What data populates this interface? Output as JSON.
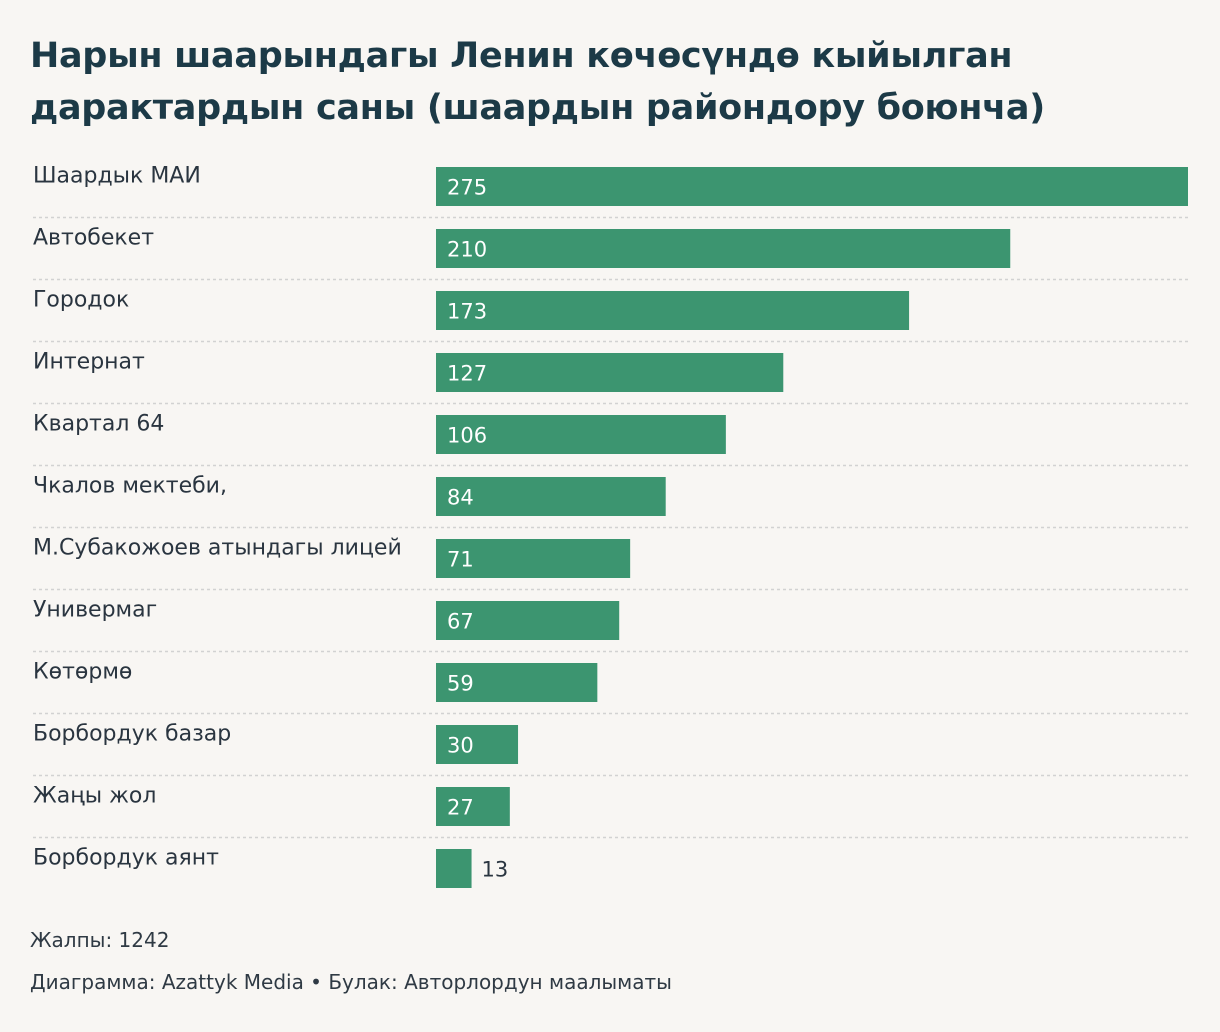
{
  "title": "Нарын шаарындагы Ленин көчөсүндө кыйылган дарактардын саны (шаардын райондору боюнча)",
  "chart_data": {
    "type": "bar",
    "orientation": "horizontal",
    "title": "Нарын шаарындагы Ленин көчөсүндө кыйылган дарактардын саны (шаардын райондору боюнча)",
    "categories": [
      "Шаардык МАИ",
      "Автобекет",
      "Городок",
      "Интернат",
      "Квартал 64",
      "Чкалов мектеби,",
      "М.Субакожоев атындагы лицей",
      "Универмаг",
      "Көтөрмө",
      "Борбордук базар",
      "Жаңы жол",
      "Борбордук аянт"
    ],
    "values": [
      275,
      210,
      173,
      127,
      106,
      84,
      71,
      67,
      59,
      30,
      27,
      13
    ],
    "xlim": [
      0,
      275
    ],
    "bar_color": "#3c9570",
    "grid": false
  },
  "footer": {
    "total": "Жалпы: 1242",
    "credit": "Диаграмма: Azattyk Media • Булак: Авторлордун маалыматы"
  }
}
